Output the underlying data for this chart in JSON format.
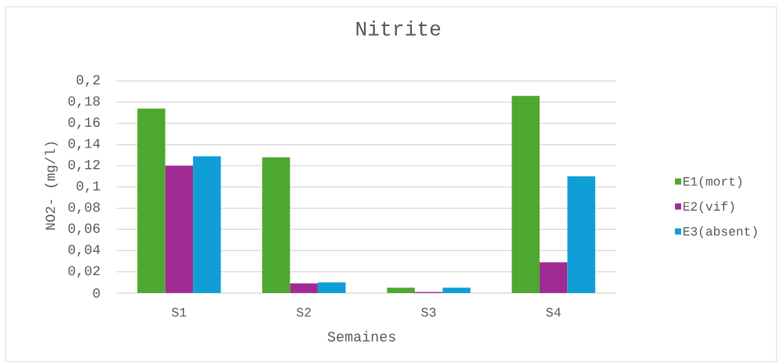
{
  "chart_data": {
    "type": "bar",
    "title": "Nitrite",
    "xlabel": "Semaines",
    "ylabel": "NO2- (mg/l)",
    "categories": [
      "S1",
      "S2",
      "S3",
      "S4"
    ],
    "series": [
      {
        "name": "E1(mort)",
        "color": "#4ea72e",
        "values": [
          0.174,
          0.128,
          0.005,
          0.186
        ]
      },
      {
        "name": "E2(vif)",
        "color": "#a02b93",
        "values": [
          0.12,
          0.009,
          0.001,
          0.029
        ]
      },
      {
        "name": "E3(absent)",
        "color": "#0f9ed5",
        "values": [
          0.129,
          0.01,
          0.005,
          0.11
        ]
      }
    ],
    "ylim": [
      0,
      0.2
    ],
    "yticks": [
      0,
      {
        "value": 0.02,
        "label": "0,02"
      },
      {
        "value": 0.04,
        "label": "0,04"
      },
      {
        "value": 0.06,
        "label": "0,06"
      },
      {
        "value": 0.08,
        "label": "0,08"
      },
      {
        "value": 0.1,
        "label": "0,1"
      },
      {
        "value": 0.12,
        "label": "0,12"
      },
      {
        "value": 0.14,
        "label": "0,14"
      },
      {
        "value": 0.16,
        "label": "0,16"
      },
      {
        "value": 0.18,
        "label": "0,18"
      },
      {
        "value": 0.2,
        "label": "0,2"
      }
    ],
    "grid": "y",
    "legend": "right"
  }
}
